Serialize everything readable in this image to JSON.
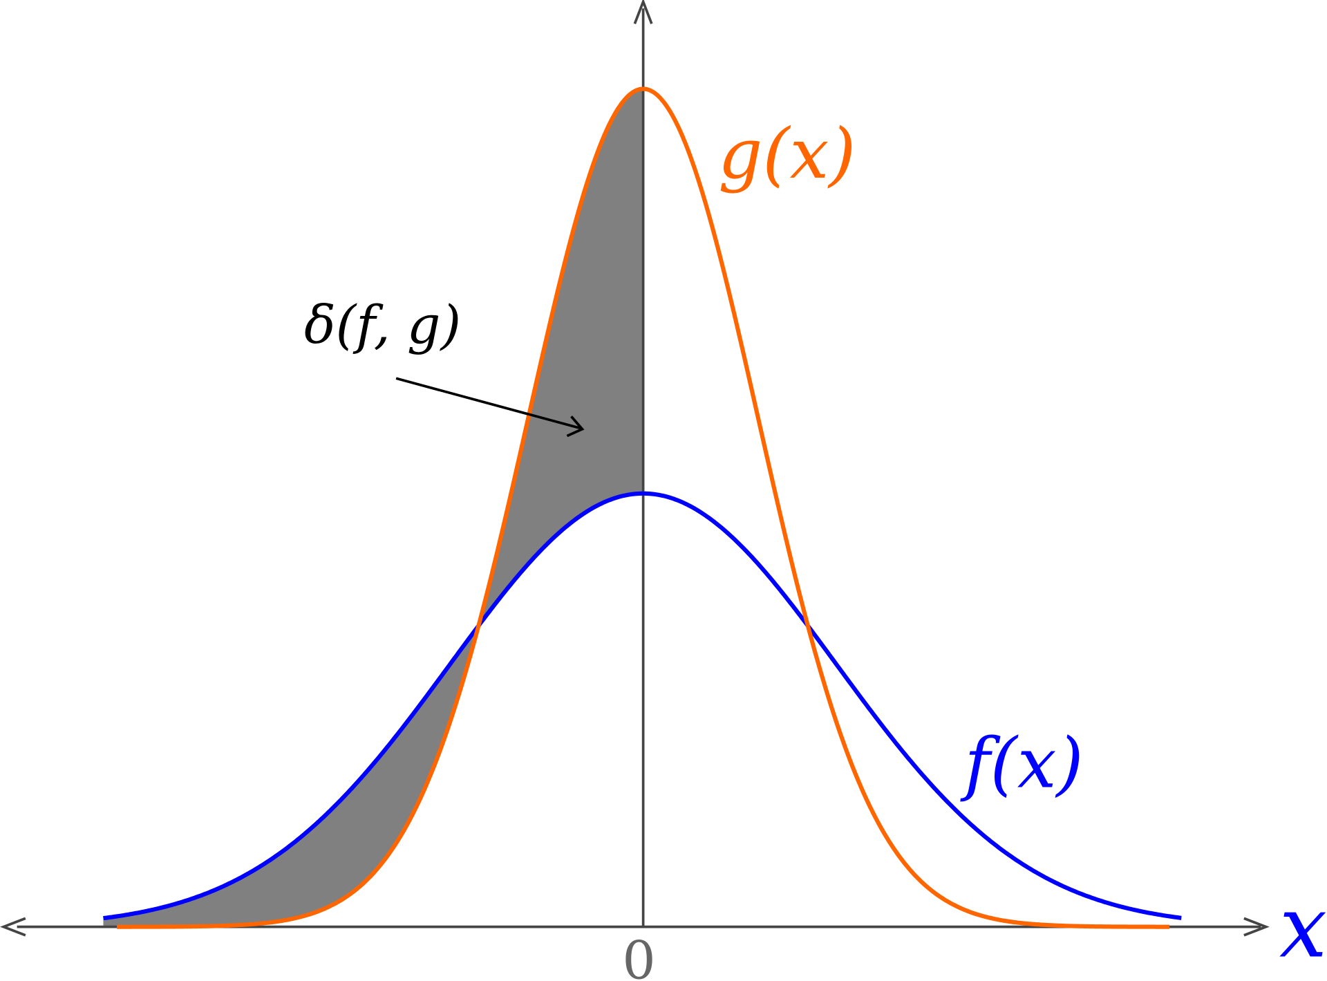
{
  "labels": {
    "g": "g(x)",
    "f": "f(x)",
    "delta": "δ(f, g)",
    "origin": "0",
    "x_axis": "x"
  }
}
